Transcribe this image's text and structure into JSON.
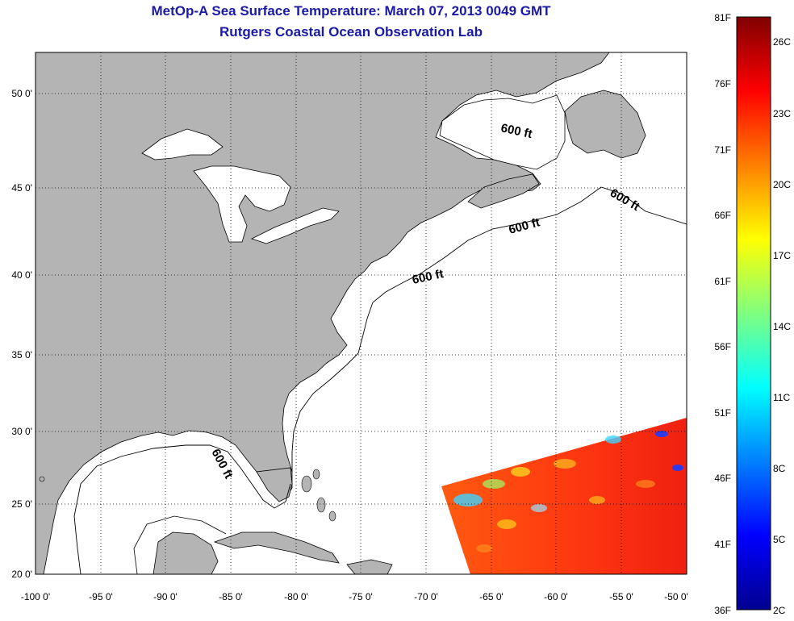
{
  "header": {
    "title": "MetOp-A Sea Surface Temperature:  March 07, 2013 0049 GMT",
    "subtitle": "Rutgers Coastal Ocean Observation Lab"
  },
  "map": {
    "lon_range": [
      -100,
      -50
    ],
    "lat_range": [
      20,
      52.5
    ],
    "grid": true,
    "lon_ticks": [
      "-100 0'",
      "-95 0'",
      "-90 0'",
      "-85 0'",
      "-80 0'",
      "-75 0'",
      "-70 0'",
      "-65 0'",
      "-60 0'",
      "-55 0'",
      "-50 0'"
    ],
    "lat_ticks": [
      "20 0'",
      "25 0'",
      "30 0'",
      "35 0'",
      "40 0'",
      "45 0'",
      "50 0'"
    ],
    "contour_labels": [
      "600 ft",
      "600 ft",
      "600 ft",
      "600 ft",
      "600 ft"
    ],
    "land_color": "#b4b4b4",
    "ocean_color": "#ffffff"
  },
  "colorbar": {
    "fahrenheit": [
      "81F",
      "76F",
      "71F",
      "66F",
      "61F",
      "56F",
      "51F",
      "46F",
      "41F",
      "36F"
    ],
    "celsius": [
      "26C",
      "23C",
      "20C",
      "17C",
      "14C",
      "11C",
      "8C",
      "5C",
      "2C"
    ]
  }
}
